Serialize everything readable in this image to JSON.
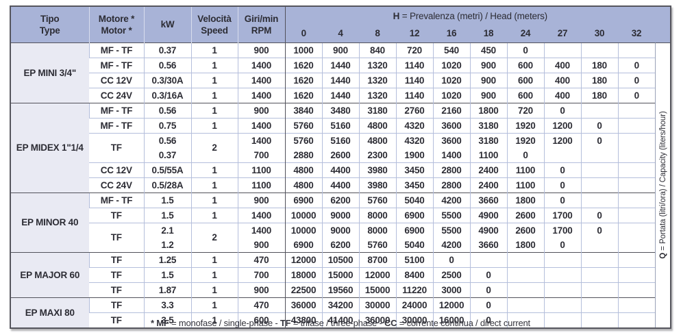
{
  "colors": {
    "header_blue": "#a8b3d7",
    "tipo_bg": "#e9eaf3",
    "grid_light": "#b4bedb",
    "grid_dark": "#51515a",
    "border_dark": "#55555d"
  },
  "table": {
    "columns": {
      "tipo": {
        "line1": "Tipo",
        "line2": "Type"
      },
      "motore": {
        "line1": "Motore *",
        "line2": "Motor *"
      },
      "kw": "kW",
      "velocita": {
        "line1": "Velocità",
        "line2": "Speed"
      },
      "giri": {
        "line1": "Giri/min",
        "line2": "RPM"
      }
    },
    "head_title": {
      "bold": "H",
      "rest": " = Prevalenza (metri) / Head (meters)"
    },
    "head_values": [
      "0",
      "4",
      "8",
      "12",
      "16",
      "18",
      "24",
      "27",
      "30",
      "32"
    ],
    "q_label": {
      "bold": "Q",
      "rest": " = Portata (litri/ora) / Capacity (liters/hour)"
    },
    "sections": [
      {
        "name": "EP MINI 3/4\"",
        "rows": [
          {
            "motor": "MF - TF",
            "kw": [
              "0.37"
            ],
            "speed": "1",
            "rpm": [
              "900"
            ],
            "data": [
              [
                "1000",
                "900",
                "840",
                "720",
                "540",
                "450",
                "0",
                "",
                "",
                ""
              ]
            ]
          },
          {
            "motor": "MF - TF",
            "kw": [
              "0.56"
            ],
            "speed": "1",
            "rpm": [
              "1400"
            ],
            "data": [
              [
                "1620",
                "1440",
                "1320",
                "1140",
                "1020",
                "900",
                "600",
                "400",
                "180",
                "0"
              ]
            ]
          },
          {
            "motor": "CC 12V",
            "kw": [
              "0.3/30A"
            ],
            "speed": "1",
            "rpm": [
              "1400"
            ],
            "data": [
              [
                "1620",
                "1440",
                "1320",
                "1140",
                "1020",
                "900",
                "600",
                "400",
                "180",
                "0"
              ]
            ]
          },
          {
            "motor": "CC 24V",
            "kw": [
              "0.3/16A"
            ],
            "speed": "1",
            "rpm": [
              "1400"
            ],
            "data": [
              [
                "1620",
                "1440",
                "1320",
                "1140",
                "1020",
                "900",
                "600",
                "400",
                "180",
                "0"
              ]
            ]
          }
        ]
      },
      {
        "name": "EP MIDEX 1\"1/4",
        "rows": [
          {
            "motor": "MF - TF",
            "kw": [
              "0.56"
            ],
            "speed": "1",
            "rpm": [
              "900"
            ],
            "data": [
              [
                "3840",
                "3480",
                "3180",
                "2760",
                "2160",
                "1800",
                "720",
                "0",
                "",
                ""
              ]
            ]
          },
          {
            "motor": "MF - TF",
            "kw": [
              "0.75"
            ],
            "speed": "1",
            "rpm": [
              "1400"
            ],
            "data": [
              [
                "5760",
                "5160",
                "4800",
                "4320",
                "3600",
                "3180",
                "1920",
                "1200",
                "0",
                ""
              ]
            ]
          },
          {
            "motor": "TF",
            "kw": [
              "0.56",
              "0.37"
            ],
            "speed": "2",
            "rpm": [
              "1400",
              "700"
            ],
            "data": [
              [
                "5760",
                "5160",
                "4800",
                "4320",
                "3600",
                "3180",
                "1920",
                "1200",
                "0",
                ""
              ],
              [
                "2880",
                "2600",
                "2300",
                "1900",
                "1400",
                "1100",
                "0",
                "",
                "",
                ""
              ]
            ]
          },
          {
            "motor": "CC 12V",
            "kw": [
              "0.5/55A"
            ],
            "speed": "1",
            "rpm": [
              "1100"
            ],
            "data": [
              [
                "4800",
                "4400",
                "3980",
                "3450",
                "2800",
                "2400",
                "1100",
                "0",
                "",
                ""
              ]
            ]
          },
          {
            "motor": "CC 24V",
            "kw": [
              "0.5/28A"
            ],
            "speed": "1",
            "rpm": [
              "1100"
            ],
            "data": [
              [
                "4800",
                "4400",
                "3980",
                "3450",
                "2800",
                "2400",
                "1100",
                "0",
                "",
                ""
              ]
            ]
          }
        ]
      },
      {
        "name": "EP MINOR 40",
        "rows": [
          {
            "motor": "MF - TF",
            "kw": [
              "1.5"
            ],
            "speed": "1",
            "rpm": [
              "900"
            ],
            "data": [
              [
                "6900",
                "6200",
                "5760",
                "5040",
                "4200",
                "3660",
                "1800",
                "0",
                "",
                ""
              ]
            ]
          },
          {
            "motor": "TF",
            "kw": [
              "1.5"
            ],
            "speed": "1",
            "rpm": [
              "1400"
            ],
            "data": [
              [
                "10000",
                "9000",
                "8000",
                "6900",
                "5500",
                "4900",
                "2600",
                "1700",
                "0",
                ""
              ]
            ]
          },
          {
            "motor": "TF",
            "kw": [
              "2.1",
              "1.2"
            ],
            "speed": "2",
            "rpm": [
              "1400",
              "900"
            ],
            "data": [
              [
                "10000",
                "9000",
                "8000",
                "6900",
                "5500",
                "4900",
                "2600",
                "1700",
                "0",
                ""
              ],
              [
                "6900",
                "6200",
                "5760",
                "5040",
                "4200",
                "3660",
                "1800",
                "0",
                "",
                ""
              ]
            ]
          }
        ]
      },
      {
        "name": "EP MAJOR 60",
        "rows": [
          {
            "motor": "TF",
            "kw": [
              "1.25"
            ],
            "speed": "1",
            "rpm": [
              "470"
            ],
            "data": [
              [
                "12000",
                "10500",
                "8700",
                "5100",
                "0",
                "",
                "",
                "",
                "",
                ""
              ]
            ]
          },
          {
            "motor": "TF",
            "kw": [
              "1.5"
            ],
            "speed": "1",
            "rpm": [
              "700"
            ],
            "data": [
              [
                "18000",
                "15000",
                "12000",
                "8400",
                "2500",
                "0",
                "",
                "",
                "",
                ""
              ]
            ]
          },
          {
            "motor": "TF",
            "kw": [
              "1.87"
            ],
            "speed": "1",
            "rpm": [
              "900"
            ],
            "data": [
              [
                "22500",
                "19560",
                "15000",
                "11220",
                "3000",
                "0",
                "",
                "",
                "",
                ""
              ]
            ]
          }
        ]
      },
      {
        "name": "EP MAXI 80",
        "rows": [
          {
            "motor": "TF",
            "kw": [
              "3.3"
            ],
            "speed": "1",
            "rpm": [
              "470"
            ],
            "data": [
              [
                "36000",
                "34200",
                "30000",
                "24000",
                "12000",
                "0",
                "",
                "",
                "",
                ""
              ]
            ]
          },
          {
            "motor": "TF",
            "kw": [
              "3.5"
            ],
            "speed": "1",
            "rpm": [
              "600"
            ],
            "data": [
              [
                "43800",
                "41400",
                "36000",
                "30000",
                "16000",
                "0",
                "",
                "",
                "",
                ""
              ]
            ]
          }
        ]
      }
    ]
  },
  "footnote": {
    "segments": [
      {
        "text": "* MF",
        "bold": true
      },
      {
        "text": " = monofase / single-phase - ",
        "bold": false
      },
      {
        "text": "TF",
        "bold": true
      },
      {
        "text": " = trifase / three-phase - ",
        "bold": false
      },
      {
        "text": "CC",
        "bold": true
      },
      {
        "text": " = corrente continua / direct current",
        "bold": false
      }
    ]
  }
}
